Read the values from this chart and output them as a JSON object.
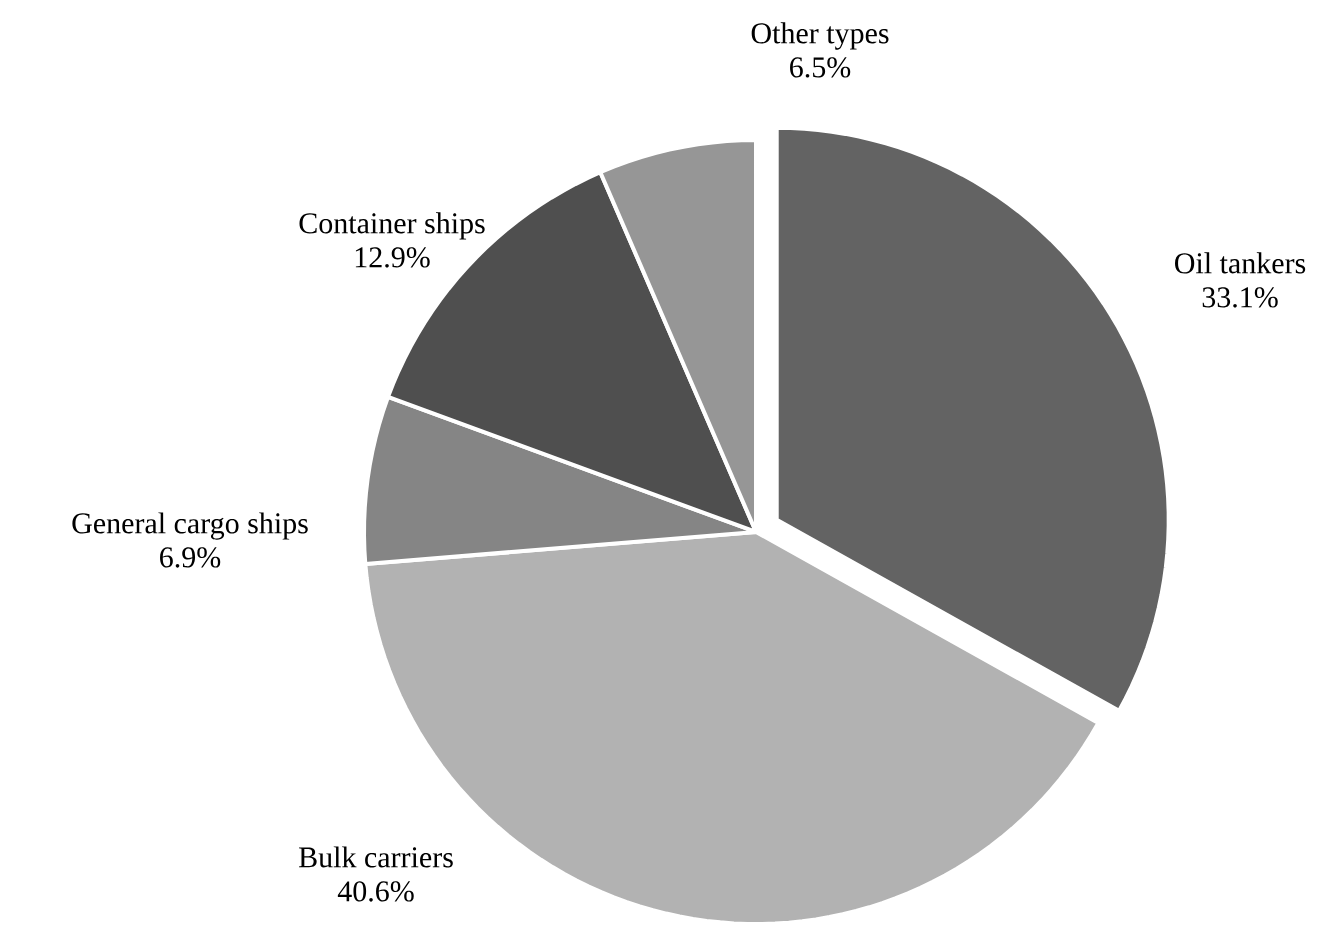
{
  "chart_data": {
    "type": "pie",
    "categories": [
      "Oil tankers",
      "Bulk carriers",
      "General cargo ships",
      "Container ships",
      "Other types"
    ],
    "values": [
      33.1,
      40.6,
      6.9,
      12.9,
      6.5
    ],
    "value_labels": [
      "33.1%",
      "40.6%",
      "6.9%",
      "12.9%",
      "6.5%"
    ],
    "colors": [
      "#636363",
      "#b2b2b2",
      "#858585",
      "#4f4f4f",
      "#969696"
    ]
  }
}
